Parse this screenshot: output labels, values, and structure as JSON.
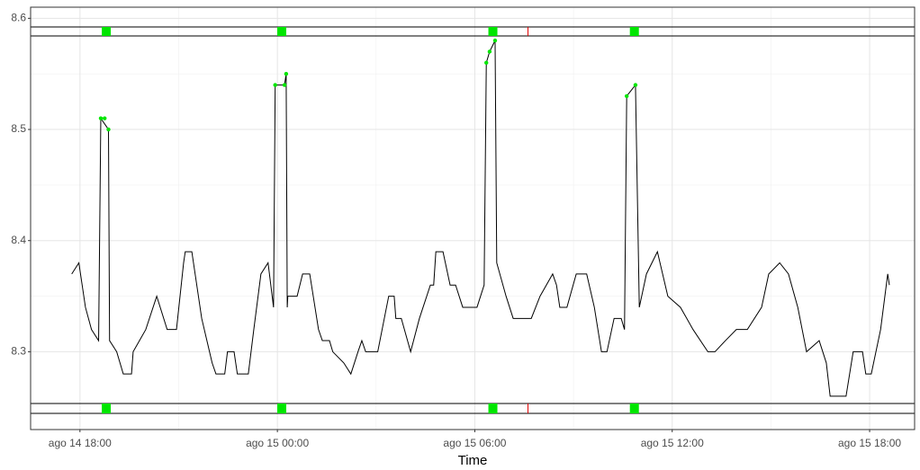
{
  "chart_data": {
    "type": "line",
    "x_label": "Time",
    "xlim": [
      "ago 14 16:30",
      "ago 15 19:22"
    ],
    "xticks": [
      "ago 14 18:00",
      "ago 15 00:00",
      "ago 15 06:00",
      "ago 15 12:00",
      "ago 15 18:00"
    ],
    "ylim": [
      8.23,
      8.61
    ],
    "yticks": [
      8.3,
      8.4,
      8.5,
      8.6
    ],
    "grid": true,
    "events": [
      "ago 14 18:48",
      "ago 15 00:08",
      "ago 15 06:33",
      "ago 15 10:51"
    ],
    "event_color": "#00e600",
    "marker": "ago 15 07:37",
    "marker_color": "#e00000",
    "series": [
      {
        "color": "#000000",
        "style": "line",
        "x": [
          "ago 14 17:45",
          "ago 14 17:58",
          "ago 14 18:10",
          "ago 14 18:21",
          "ago 14 18:34",
          "ago 14 18:38",
          "ago 14 18:52",
          "ago 14 18:54",
          "ago 14 19:07",
          "ago 14 19:19",
          "ago 14 19:34",
          "ago 14 19:37",
          "ago 14 20:00",
          "ago 14 20:20",
          "ago 14 20:39",
          "ago 14 20:56",
          "ago 14 21:09",
          "ago 14 21:12",
          "ago 14 21:24",
          "ago 14 21:42",
          "ago 14 22:01",
          "ago 14 22:08",
          "ago 14 22:24",
          "ago 14 22:29",
          "ago 14 22:41",
          "ago 14 22:47",
          "ago 14 23:07",
          "ago 14 23:17",
          "ago 14 23:30",
          "ago 14 23:43",
          "ago 14 23:53",
          "ago 14 23:56",
          "ago 15 00:13",
          "ago 15 00:16",
          "ago 15 00:18",
          "ago 15 00:19",
          "ago 15 00:36",
          "ago 15 00:46",
          "ago 15 00:59",
          "ago 15 01:15",
          "ago 15 01:22",
          "ago 15 01:35",
          "ago 15 01:41",
          "ago 15 02:01",
          "ago 15 02:14",
          "ago 15 02:27",
          "ago 15 02:34",
          "ago 15 02:41",
          "ago 15 03:03",
          "ago 15 03:23",
          "ago 15 03:33",
          "ago 15 03:36",
          "ago 15 03:46",
          "ago 15 04:03",
          "ago 15 04:19",
          "ago 15 04:39",
          "ago 15 04:45",
          "ago 15 04:49",
          "ago 15 05:02",
          "ago 15 05:15",
          "ago 15 05:25",
          "ago 15 05:38",
          "ago 15 06:04",
          "ago 15 06:17",
          "ago 15 06:21",
          "ago 15 06:27",
          "ago 15 06:37",
          "ago 15 06:40",
          "ago 15 06:57",
          "ago 15 07:10",
          "ago 15 07:43",
          "ago 15 07:59",
          "ago 15 08:22",
          "ago 15 08:29",
          "ago 15 08:35",
          "ago 15 08:48",
          "ago 15 09:05",
          "ago 15 09:24",
          "ago 15 09:38",
          "ago 15 09:51",
          "ago 15 10:01",
          "ago 15 10:14",
          "ago 15 10:27",
          "ago 15 10:33",
          "ago 15 10:37",
          "ago 15 10:53",
          "ago 15 11:00",
          "ago 15 11:13",
          "ago 15 11:33",
          "ago 15 11:52",
          "ago 15 12:15",
          "ago 15 12:38",
          "ago 15 13:05",
          "ago 15 13:18",
          "ago 15 13:37",
          "ago 15 13:57",
          "ago 15 14:17",
          "ago 15 14:43",
          "ago 15 14:56",
          "ago 15 15:16",
          "ago 15 15:32",
          "ago 15 15:49",
          "ago 15 16:05",
          "ago 15 16:28",
          "ago 15 16:41",
          "ago 15 16:48",
          "ago 15 17:17",
          "ago 15 17:30",
          "ago 15 17:47",
          "ago 15 17:53",
          "ago 15 18:03",
          "ago 15 18:20",
          "ago 15 18:33",
          "ago 15 18:36"
        ],
        "values": [
          8.37,
          8.38,
          8.34,
          8.32,
          8.31,
          8.51,
          8.5,
          8.31,
          8.3,
          8.28,
          8.28,
          8.3,
          8.32,
          8.35,
          8.32,
          8.32,
          8.38,
          8.39,
          8.39,
          8.33,
          8.29,
          8.28,
          8.28,
          8.3,
          8.3,
          8.28,
          8.28,
          8.32,
          8.37,
          8.38,
          8.34,
          8.54,
          8.54,
          8.55,
          8.34,
          8.35,
          8.35,
          8.37,
          8.37,
          8.32,
          8.31,
          8.31,
          8.3,
          8.29,
          8.28,
          8.3,
          8.31,
          8.3,
          8.3,
          8.35,
          8.35,
          8.33,
          8.33,
          8.3,
          8.33,
          8.36,
          8.36,
          8.39,
          8.39,
          8.36,
          8.36,
          8.34,
          8.34,
          8.36,
          8.56,
          8.57,
          8.58,
          8.38,
          8.35,
          8.33,
          8.33,
          8.35,
          8.37,
          8.36,
          8.34,
          8.34,
          8.37,
          8.37,
          8.34,
          8.3,
          8.3,
          8.33,
          8.33,
          8.32,
          8.53,
          8.54,
          8.34,
          8.37,
          8.39,
          8.35,
          8.34,
          8.32,
          8.3,
          8.3,
          8.31,
          8.32,
          8.32,
          8.34,
          8.37,
          8.38,
          8.37,
          8.34,
          8.3,
          8.31,
          8.29,
          8.26,
          8.26,
          8.3,
          8.3,
          8.28,
          8.28,
          8.32,
          8.37,
          8.36
        ]
      },
      {
        "color": "#00e600",
        "style": "points",
        "x": [
          "ago 14 18:38",
          "ago 14 18:45",
          "ago 14 18:52",
          "ago 14 23:56",
          "ago 15 00:13",
          "ago 15 00:16",
          "ago 15 06:21",
          "ago 15 06:27",
          "ago 15 06:37",
          "ago 15 10:37",
          "ago 15 10:53"
        ],
        "values": [
          8.51,
          8.51,
          8.5,
          8.54,
          8.54,
          8.55,
          8.56,
          8.57,
          8.58,
          8.53,
          8.54
        ]
      }
    ]
  }
}
